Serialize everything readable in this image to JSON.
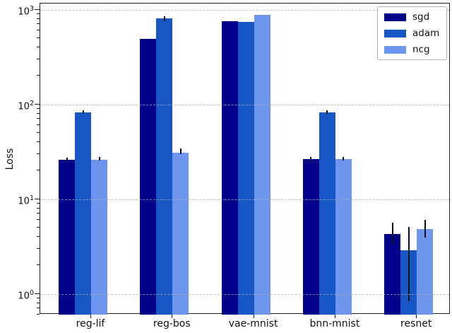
{
  "chart_data": {
    "type": "bar",
    "title": "",
    "xlabel": "",
    "ylabel": "Loss",
    "yscale": "log",
    "ylim": [
      0.6,
      1150
    ],
    "grid": {
      "axis": "y",
      "style": "dashed",
      "color": "#ababab",
      "on": true
    },
    "legend_position": "upper right",
    "error_bar_color": "#111111",
    "categories": [
      "reg-lif",
      "reg-bos",
      "vae-mnist",
      "bnn-mnist",
      "resnet"
    ],
    "series": [
      {
        "name": "sgd",
        "color": "#00008b",
        "values": [
          26,
          490,
          755,
          26.5,
          4.3
        ],
        "err_lo": [
          25,
          490,
          755,
          25,
          3.3
        ],
        "err_hi": [
          27.5,
          490,
          755,
          28,
          5.6
        ]
      },
      {
        "name": "adam",
        "color": "#1656c5",
        "values": [
          82,
          810,
          745,
          82,
          2.9
        ],
        "err_lo": [
          79,
          760,
          745,
          79,
          0.84
        ],
        "err_hi": [
          86,
          850,
          745,
          87,
          5.1
        ]
      },
      {
        "name": "ncg",
        "color": "#6e96ee",
        "values": [
          26,
          31,
          875,
          26.5,
          4.8
        ],
        "err_lo": [
          25.5,
          30,
          875,
          25.5,
          3.9
        ],
        "err_hi": [
          28,
          34,
          875,
          28,
          6.0
        ]
      }
    ],
    "y_ticks": [
      {
        "base": "10",
        "exp": "3",
        "value": 1000
      },
      {
        "base": "10",
        "exp": "2",
        "value": 100
      },
      {
        "base": "10",
        "exp": "1",
        "value": 10
      },
      {
        "base": "10",
        "exp": "0",
        "value": 1
      }
    ]
  }
}
